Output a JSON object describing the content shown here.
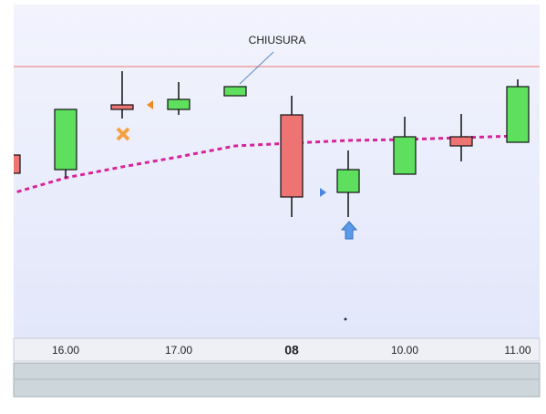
{
  "chart_data": {
    "type": "candlestick",
    "categories": [
      null,
      "16.00",
      null,
      "17.00",
      null,
      "08",
      null,
      "10.00",
      null,
      "11.00"
    ],
    "open": [
      200,
      184,
      255,
      250,
      265,
      244,
      159,
      179,
      220,
      214
    ],
    "high": [
      200,
      250,
      292,
      280,
      275,
      265,
      205,
      242,
      245,
      283
    ],
    "low": [
      180,
      175,
      240,
      244,
      265,
      132,
      132,
      179,
      193,
      214
    ],
    "close": [
      180,
      250,
      250,
      261,
      275,
      154,
      184,
      220,
      210,
      275
    ],
    "up_color": "#5ee05e",
    "down_color": "#ee7373",
    "moving_average": {
      "color": "#d6249a",
      "values": [
        157,
        175,
        187,
        198,
        210,
        213,
        216,
        217,
        219,
        221
      ]
    },
    "reference_line": {
      "value": 297,
      "color": "#f0a0a0"
    },
    "annotation": {
      "text": "CHIUSURA",
      "category_index": 4
    },
    "ylim": [
      0,
      365
    ]
  }
}
